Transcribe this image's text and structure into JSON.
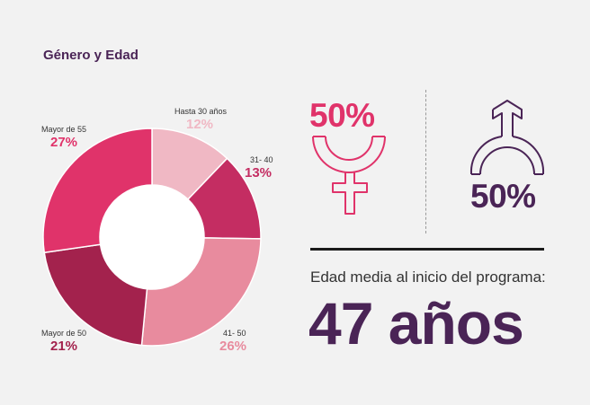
{
  "title": "Género y Edad",
  "chart_data": {
    "type": "pie",
    "title": "Género y Edad",
    "slices": [
      {
        "label": "Hasta 30 años",
        "value": 12,
        "value_text": "12%",
        "color": "#f0b8c4"
      },
      {
        "label": "31- 40",
        "value": 13,
        "value_text": "13%",
        "color": "#c42d62"
      },
      {
        "label": "41- 50",
        "value": 26,
        "value_text": "26%",
        "color": "#e88b9e"
      },
      {
        "label": "Mayor de 50",
        "value": 21,
        "value_text": "21%",
        "color": "#a3224d"
      },
      {
        "label": "Mayor de 55",
        "value": 27,
        "value_text": "27%",
        "color": "#e0336a"
      }
    ]
  },
  "gender": {
    "female": {
      "value": "50%",
      "color": "#e0336a",
      "icon": "female-icon"
    },
    "male": {
      "value": "50%",
      "color": "#4a2456",
      "icon": "male-icon"
    }
  },
  "age": {
    "caption": "Edad media al inicio del programa:",
    "value": "47 años"
  }
}
